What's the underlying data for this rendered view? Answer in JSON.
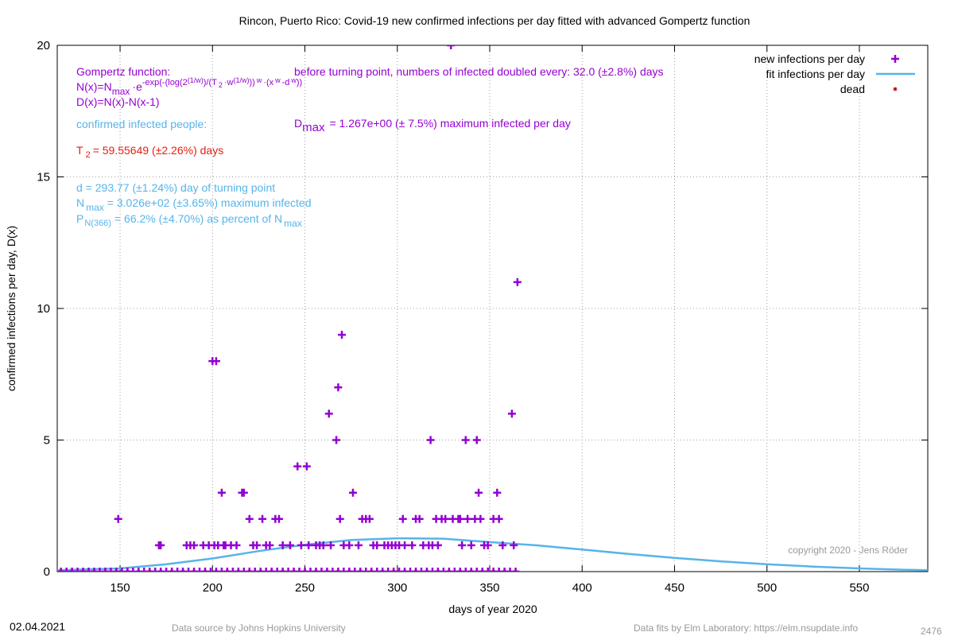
{
  "chart_data": {
    "type": "scatter",
    "title": "Rincon,  Puerto Rico: Covid-19 new confirmed infections per day fitted with advanced Gompertz function",
    "xlabel": "days of year 2020",
    "ylabel": "confirmed infections per day, D(x)",
    "xlim": [
      116,
      587
    ],
    "ylim": [
      0,
      20
    ],
    "xticks": [
      150,
      200,
      250,
      300,
      350,
      400,
      450,
      500,
      550
    ],
    "yticks": [
      0,
      5,
      10,
      15,
      20
    ],
    "grid": true,
    "legend": "top-right",
    "series": [
      {
        "name": "new infections per day",
        "color": "#9400d3",
        "marker": "plus",
        "x": [
          149,
          171,
          172,
          186,
          188,
          190,
          195,
          198,
          200,
          202,
          201,
          203,
          205,
          206,
          207,
          210,
          213,
          216,
          217,
          220,
          222,
          224,
          227,
          229,
          231,
          234,
          236,
          238,
          242,
          246,
          251,
          248,
          252,
          256,
          258,
          260,
          263,
          264,
          267,
          268,
          269,
          270,
          271,
          274,
          276,
          279,
          281,
          283,
          285,
          287,
          289,
          293,
          295,
          297,
          299,
          301,
          303,
          304,
          308,
          310,
          312,
          314,
          317,
          318,
          319,
          321,
          322,
          324,
          326,
          329,
          330,
          333,
          334,
          335,
          337,
          338,
          340,
          342,
          343,
          344,
          345,
          347,
          349,
          352,
          354,
          355,
          357,
          362,
          363,
          365,
          118,
          121,
          124,
          127,
          130,
          133,
          136,
          139,
          142,
          145,
          148,
          151,
          154,
          157,
          160,
          163,
          166,
          169,
          172,
          175,
          178,
          181,
          184,
          187,
          190,
          193,
          196,
          199,
          202,
          205,
          208,
          211,
          214,
          217,
          220,
          223,
          226,
          229,
          232,
          235,
          238,
          241,
          244,
          247,
          250,
          253,
          256,
          259,
          262,
          265,
          268,
          271,
          274,
          277,
          280,
          283,
          286,
          289,
          292,
          295,
          298,
          301,
          304,
          307,
          310,
          313,
          316,
          319,
          322,
          325,
          328,
          331,
          334,
          337,
          340,
          343,
          346,
          349,
          352,
          355,
          358,
          361,
          364
        ],
        "values": [
          2,
          1,
          1,
          1,
          1,
          1,
          1,
          1,
          8,
          8,
          1,
          1,
          3,
          1,
          1,
          1,
          1,
          3,
          3,
          2,
          1,
          1,
          2,
          1,
          1,
          2,
          2,
          1,
          1,
          4,
          4,
          1,
          1,
          1,
          1,
          1,
          6,
          1,
          5,
          7,
          2,
          9,
          1,
          1,
          3,
          1,
          2,
          2,
          2,
          1,
          1,
          1,
          1,
          1,
          1,
          1,
          2,
          1,
          1,
          2,
          2,
          1,
          1,
          5,
          1,
          2,
          1,
          2,
          2,
          20,
          2,
          2,
          2,
          1,
          5,
          2,
          1,
          2,
          5,
          3,
          2,
          1,
          1,
          2,
          3,
          2,
          1,
          6,
          1,
          11,
          0,
          0,
          0,
          0,
          0,
          0,
          0,
          0,
          0,
          0,
          0,
          0,
          0,
          0,
          0,
          0,
          0,
          0,
          0,
          0,
          0,
          0,
          0,
          0,
          0,
          0,
          0,
          0,
          0,
          0,
          0,
          0,
          0,
          0,
          0,
          0,
          0,
          0,
          0,
          0,
          0,
          0,
          0,
          0,
          0,
          0,
          0,
          0,
          0,
          0,
          0,
          0,
          0,
          0,
          0,
          0,
          0,
          0,
          0,
          0,
          0,
          0,
          0,
          0,
          0,
          0,
          0,
          0,
          0,
          0,
          0,
          0,
          0,
          0,
          0,
          0,
          0,
          0,
          0,
          0,
          0,
          0,
          0
        ]
      },
      {
        "name": "fit infections per day",
        "color": "#56b4e9",
        "marker": "line",
        "x": [
          116,
          150,
          175,
          200,
          225,
          250,
          275,
          300,
          325,
          350,
          375,
          400,
          425,
          450,
          475,
          500,
          525,
          550,
          575,
          587
        ],
        "values": [
          0.05,
          0.12,
          0.28,
          0.5,
          0.78,
          1.02,
          1.2,
          1.267,
          1.25,
          1.12,
          1.0,
          0.84,
          0.67,
          0.52,
          0.39,
          0.28,
          0.19,
          0.12,
          0.07,
          0.05
        ]
      },
      {
        "name": "dead",
        "color": "#c00000",
        "marker": "star",
        "x": [
          118,
          124,
          130,
          136,
          142,
          148,
          154,
          160,
          166,
          172,
          178,
          184,
          190,
          196,
          202,
          208,
          214,
          220,
          226,
          232,
          238,
          244,
          250,
          256,
          262,
          268,
          274,
          280,
          286,
          292,
          298,
          304,
          310,
          316,
          322,
          328,
          334,
          340,
          346,
          352,
          358,
          364
        ],
        "values": [
          0,
          0,
          0,
          0,
          0,
          0,
          0,
          0,
          0,
          0,
          0,
          0,
          0,
          0,
          0,
          0,
          0,
          0,
          0,
          0,
          0,
          0,
          0,
          0,
          0,
          0,
          0,
          0,
          0,
          0,
          0,
          0,
          0,
          0,
          0,
          0,
          0,
          0,
          0,
          0,
          0,
          0
        ]
      }
    ],
    "annotations": {
      "gompertz": "Gompertz function:",
      "formula": [
        "N(x)=N",
        "max",
        "·e",
        "-exp(-(log(2",
        "(1/w)",
        ")/(T",
        "2",
        "·w",
        "(1/w)",
        "))",
        "w",
        "·(x",
        "w",
        "-d",
        "w",
        "))"
      ],
      "derivative": "D(x)=N(x)-N(x-1)",
      "confirmed": "confirmed infected people:",
      "t2": [
        "T",
        "2",
        "= 59.55649 (±2.26%) days"
      ],
      "turning": "d = 293.77 (±1.24%) day of turning point",
      "nmax": [
        "N",
        "max",
        "= 3.026e+02 (±3.65%) maximum infected"
      ],
      "percent": [
        "P",
        "N(366)",
        "= 66.2% (±4.70%) as percent of N",
        "max"
      ],
      "doubled": "before turning point, numbers of infected doubled every: 32.0 (±2.8%) days",
      "dmax": [
        "D",
        "max",
        "= 1.267e+00 (± 7.5%) maximum infected per day"
      ],
      "copyright": "copyright 2020 - Jens Röder"
    },
    "footer": {
      "date": "02.04.2021",
      "source": "Data source by Johns Hopkins University",
      "fits": "Data fits by Elm Laboratory: https://elm.nsupdate.info",
      "id": "2476"
    }
  }
}
